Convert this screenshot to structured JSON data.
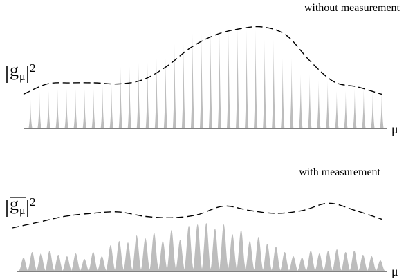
{
  "top_panel": {
    "caption": "without measurement",
    "ylabel_base": "g",
    "ylabel_sub": "μ",
    "ylabel_sup": "2",
    "xlabel": "μ",
    "spikes": [
      0.28,
      0.36,
      0.36,
      0.38,
      0.38,
      0.38,
      0.38,
      0.38,
      0.42,
      0.42,
      0.6,
      0.6,
      0.64,
      0.64,
      0.68,
      0.68,
      0.82,
      0.82,
      0.92,
      0.92,
      0.96,
      0.96,
      0.96,
      1.0,
      0.96,
      0.96,
      0.86,
      0.86,
      0.68,
      0.68,
      0.52,
      0.52,
      0.46,
      0.46,
      0.36,
      0.36,
      0.38,
      0.38,
      0.38,
      0.38
    ],
    "envelope": [
      0.33,
      0.43,
      0.44,
      0.44,
      0.43,
      0.47,
      0.6,
      0.78,
      0.9,
      0.96,
      0.98,
      0.9,
      0.65,
      0.45,
      0.4,
      0.33
    ]
  },
  "bottom_panel": {
    "caption": "with measurement",
    "ylabel_base": "g",
    "ylabel_sub": "μ",
    "ylabel_sup": "2",
    "xlabel": "μ",
    "peaks": [
      0.2,
      0.28,
      0.26,
      0.3,
      0.24,
      0.22,
      0.26,
      0.18,
      0.28,
      0.22,
      0.38,
      0.44,
      0.42,
      0.52,
      0.48,
      0.56,
      0.44,
      0.6,
      0.46,
      0.66,
      0.68,
      0.7,
      0.62,
      0.68,
      0.54,
      0.6,
      0.44,
      0.5,
      0.4,
      0.36,
      0.28,
      0.22,
      0.2,
      0.3,
      0.26,
      0.3,
      0.32,
      0.28,
      0.3,
      0.24,
      0.22,
      0.16
    ],
    "envelope": [
      0.3,
      0.34,
      0.38,
      0.4,
      0.41,
      0.38,
      0.37,
      0.39,
      0.45,
      0.42,
      0.4,
      0.42,
      0.47,
      0.42,
      0.36
    ]
  }
}
